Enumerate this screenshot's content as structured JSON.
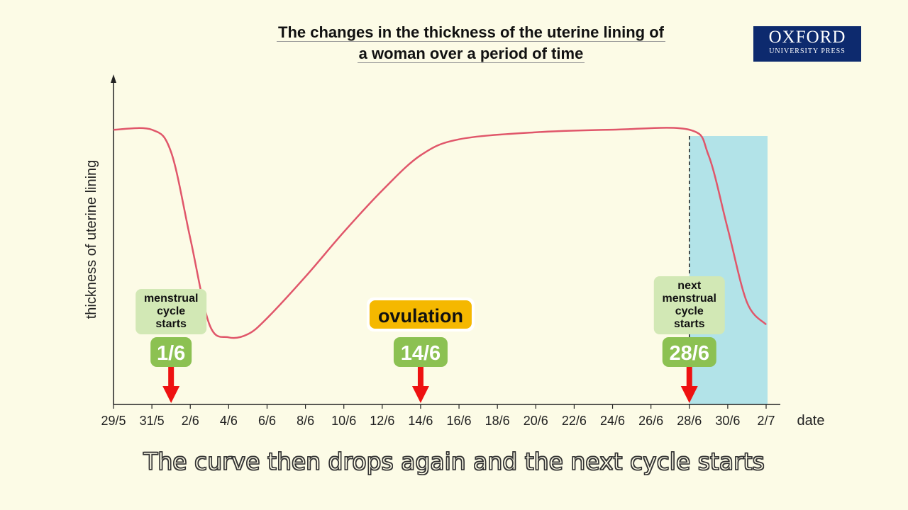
{
  "title_line1": "The changes in the thickness of the uterine lining of",
  "title_line2": "a woman over a period of time",
  "logo": {
    "main": "OXFORD",
    "sub": "UNIVERSITY PRESS"
  },
  "caption": "The curve then drops again and the next cycle starts",
  "chart_data": {
    "type": "line",
    "title": "The changes in the thickness of the uterine lining of a woman over a period of time",
    "xlabel": "date",
    "ylabel": "thickness of uterine lining",
    "x_ticks": [
      "29/5",
      "31/5",
      "2/6",
      "4/6",
      "6/6",
      "8/6",
      "10/6",
      "12/6",
      "14/6",
      "16/6",
      "18/6",
      "20/6",
      "22/6",
      "24/6",
      "26/6",
      "28/6",
      "30/6",
      "2/7"
    ],
    "xlim": [
      "29/5",
      "2/7"
    ],
    "y_axis_numeric_labels": false,
    "series": [
      {
        "color": "#e0566a",
        "points": [
          {
            "x": "29/5",
            "y": 0.86
          },
          {
            "x": "31/5",
            "y": 0.86
          },
          {
            "x": "1/6",
            "y": 0.79
          },
          {
            "x": "2/6",
            "y": 0.52
          },
          {
            "x": "3/6",
            "y": 0.25
          },
          {
            "x": "4/6",
            "y": 0.21
          },
          {
            "x": "5/6",
            "y": 0.22
          },
          {
            "x": "6/6",
            "y": 0.27
          },
          {
            "x": "8/6",
            "y": 0.4
          },
          {
            "x": "10/6",
            "y": 0.54
          },
          {
            "x": "12/6",
            "y": 0.67
          },
          {
            "x": "14/6",
            "y": 0.78
          },
          {
            "x": "16/6",
            "y": 0.83
          },
          {
            "x": "20/6",
            "y": 0.852
          },
          {
            "x": "24/6",
            "y": 0.86
          },
          {
            "x": "28/6",
            "y": 0.86
          },
          {
            "x": "29/6",
            "y": 0.78
          },
          {
            "x": "30/6",
            "y": 0.55
          },
          {
            "x": "1/7",
            "y": 0.32
          },
          {
            "x": "2/7",
            "y": 0.25
          }
        ]
      }
    ],
    "shaded_region": {
      "from": "28/6",
      "to": "2/7",
      "color": "#b2e3e8"
    },
    "markers": [
      {
        "date": "1/6",
        "date_label": "1/6",
        "label_lines": [
          "menstrual",
          "cycle",
          "starts"
        ],
        "style": "green"
      },
      {
        "date": "14/6",
        "date_label": "14/6",
        "label_lines": [
          "ovulation"
        ],
        "style": "yellow"
      },
      {
        "date": "28/6",
        "date_label": "28/6",
        "label_lines": [
          "next",
          "menstrual",
          "cycle",
          "starts"
        ],
        "style": "green",
        "dashed_line": true
      }
    ],
    "colors": {
      "curve": "#e0566a",
      "arrow": "#ee1111",
      "green_badge": "#8cc152",
      "green_label": "#d2e8b5",
      "ovulation_badge": "#f5b800",
      "shade": "#b2e3e8"
    }
  }
}
